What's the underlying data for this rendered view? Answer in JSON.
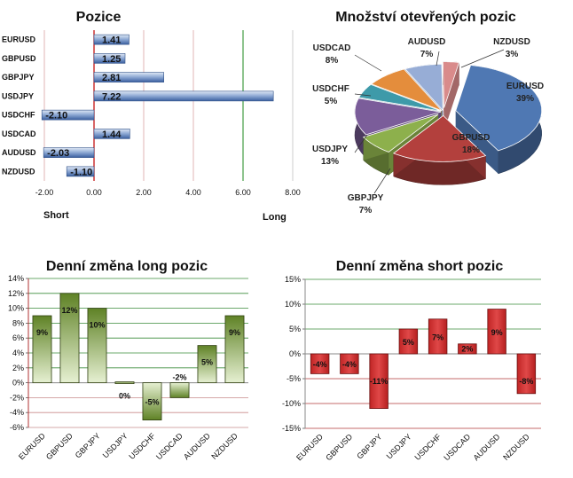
{
  "chart_data": [
    {
      "id": "pozice",
      "type": "bar",
      "orientation": "horizontal",
      "title": "Pozice",
      "categories": [
        "EURUSD",
        "GBPUSD",
        "GBPJPY",
        "USDJPY",
        "USDCHF",
        "USDCAD",
        "AUDUSD",
        "NZDUSD"
      ],
      "values": [
        1.41,
        1.25,
        2.81,
        7.22,
        -2.1,
        1.44,
        -2.03,
        -1.1
      ],
      "value_labels": [
        "1.41",
        "1.25",
        "2.81",
        "7.22",
        "-2.10",
        "1.44",
        "-2.03",
        "-1.10"
      ],
      "xlim": [
        -2,
        8
      ],
      "x_ticks": [
        "-2.00",
        "0.00",
        "2.00",
        "4.00",
        "6.00",
        "8.00"
      ],
      "left_label": "Short",
      "right_label": "Long",
      "colors": {
        "bar": "#4f74b5",
        "bar_light": "#dfe8f5",
        "zero_line": "#c00000",
        "long_line": "#1e8a1e",
        "grid": "#e2b6b6"
      }
    },
    {
      "id": "mnozstvi",
      "type": "pie",
      "title": "Množství otevřených pozic",
      "slices": [
        {
          "label": "EURUSD",
          "percent": "39%",
          "value": 39,
          "color": "#4f78b3"
        },
        {
          "label": "GBPUSD",
          "percent": "18%",
          "value": 18,
          "color": "#b3403d"
        },
        {
          "label": "GBPJPY",
          "percent": "7%",
          "value": 7,
          "color": "#8db04c"
        },
        {
          "label": "USDJPY",
          "percent": "13%",
          "value": 13,
          "color": "#7b5d9a"
        },
        {
          "label": "USDCHF",
          "percent": "5%",
          "value": 5,
          "color": "#3e9aa9"
        },
        {
          "label": "USDCAD",
          "percent": "8%",
          "value": 8,
          "color": "#e48d3c"
        },
        {
          "label": "AUDUSD",
          "percent": "7%",
          "value": 7,
          "color": "#97add6"
        },
        {
          "label": "NZDUSD",
          "percent": "3%",
          "value": 3,
          "color": "#d98b8b"
        }
      ]
    },
    {
      "id": "long",
      "type": "bar",
      "title": "Denní změna long pozic",
      "categories": [
        "EURUSD",
        "GBPUSD",
        "GBPJPY",
        "USDJPY",
        "USDCHF",
        "USDCAD",
        "AUDUSD",
        "NZDUSD"
      ],
      "values": [
        9,
        12,
        10,
        0,
        -5,
        -2,
        5,
        9
      ],
      "value_labels": [
        "9%",
        "12%",
        "10%",
        "0%",
        "-5%",
        "-2%",
        "5%",
        "9%"
      ],
      "ylim": [
        -6,
        14
      ],
      "y_ticks": [
        "-6%",
        "-4%",
        "-2%",
        "0%",
        "2%",
        "4%",
        "6%",
        "8%",
        "10%",
        "12%",
        "14%"
      ],
      "colors": {
        "bar": "#6b8e2f",
        "bar_light": "#e4efcf",
        "grid_pos": "#3a8c3a",
        "grid_neg": "#c98c8c"
      }
    },
    {
      "id": "short",
      "type": "bar",
      "title": "Denní změna short pozic",
      "categories": [
        "EURUSD",
        "GBPUSD",
        "GBPJPY",
        "USDJPY",
        "USDCHF",
        "USDCAD",
        "AUDUSD",
        "NZDUSD"
      ],
      "values": [
        -4,
        -4,
        -11,
        5,
        7,
        2,
        9,
        -8
      ],
      "value_labels": [
        "-4%",
        "-4%",
        "-11%",
        "5%",
        "7%",
        "2%",
        "9%",
        "-8%"
      ],
      "ylim": [
        -15,
        15
      ],
      "y_ticks": [
        "-15%",
        "-10%",
        "-5%",
        "0%",
        "5%",
        "10%",
        "15%"
      ],
      "colors": {
        "bar": "#d23b3b",
        "bar_dark": "#b22222",
        "grid_pos": "#3a8c3a",
        "grid_neg": "#b33a3a"
      }
    }
  ]
}
